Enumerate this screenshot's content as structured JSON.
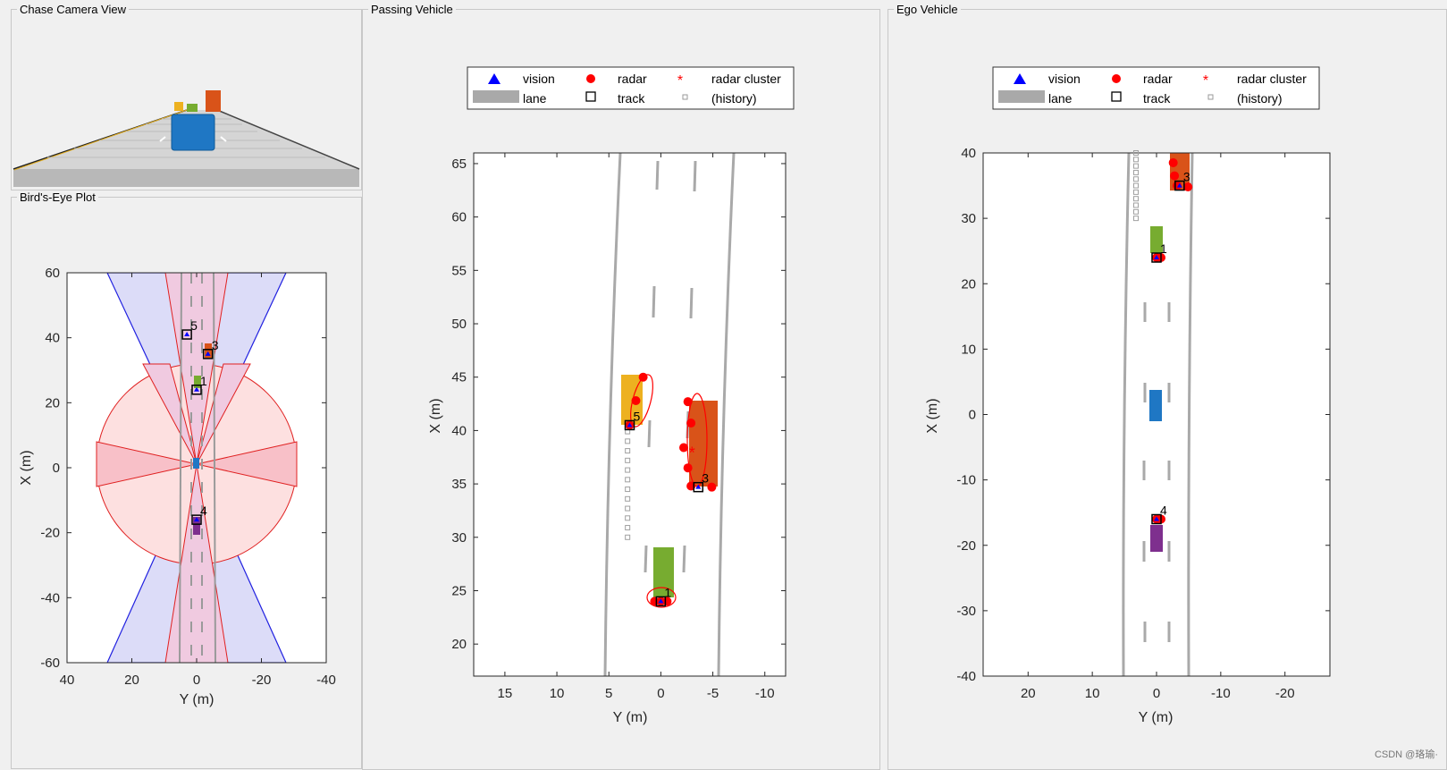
{
  "panels": {
    "chase": "Chase Camera View",
    "birdseye": "Bird's-Eye Plot",
    "passing": "Passing Vehicle",
    "ego": "Ego Vehicle"
  },
  "legend": {
    "vision": "vision",
    "radar": "radar",
    "radar_cluster": "radar cluster",
    "lane": "lane",
    "track": "track",
    "history": "(history)"
  },
  "colors": {
    "vision": "#0000ff",
    "radar": "#ff0000",
    "lane": "#a9a9a9",
    "ego_car": "#1f77c4",
    "yellow_car": "#edb120",
    "green_car": "#77ac30",
    "orange_car": "#d95319",
    "purple_car": "#7e2f8e"
  },
  "watermark": "CSDN @珞瑜·",
  "chart_data": [
    {
      "name": "birdseye",
      "type": "scatter",
      "xlabel": "Y (m)",
      "ylabel": "X (m)",
      "xlim": [
        40,
        -40
      ],
      "ylim": [
        -60,
        60
      ],
      "xticks": [
        "40",
        "20",
        "0",
        "-20",
        "-40"
      ],
      "yticks": [
        "60",
        "40",
        "20",
        "0",
        "-20",
        "-40",
        "-60"
      ],
      "tracks": [
        {
          "id": "1",
          "y": 0,
          "x": 24
        },
        {
          "id": "3",
          "y": -3.5,
          "x": 35
        },
        {
          "id": "4",
          "y": 0,
          "x": -16
        },
        {
          "id": "5",
          "y": 3,
          "x": 41
        }
      ]
    },
    {
      "name": "passing",
      "type": "scatter",
      "xlabel": "Y (m)",
      "ylabel": "X (m)",
      "xlim": [
        18,
        -12
      ],
      "ylim": [
        17,
        66
      ],
      "xticks": [
        "15",
        "10",
        "5",
        "0",
        "-5",
        "-10"
      ],
      "yticks": [
        "65",
        "60",
        "55",
        "50",
        "45",
        "40",
        "35",
        "30",
        "25",
        "20"
      ],
      "tracks": [
        {
          "id": "1",
          "y": 0,
          "x": 24
        },
        {
          "id": "3",
          "y": -3.6,
          "x": 34.7
        },
        {
          "id": "5",
          "y": 3,
          "x": 40.5
        }
      ],
      "radar": [
        {
          "y": 0,
          "x": 24
        },
        {
          "y": -0.6,
          "x": 24
        },
        {
          "y": 0.6,
          "x": 24
        },
        {
          "y": 3,
          "x": 40.5
        },
        {
          "y": 2.4,
          "x": 42.8
        },
        {
          "y": 1.7,
          "x": 45
        },
        {
          "y": -2.6,
          "x": 42.7
        },
        {
          "y": -2.9,
          "x": 40.7
        },
        {
          "y": -2.2,
          "x": 38.4
        },
        {
          "y": -2.6,
          "x": 36.5
        },
        {
          "y": -2.9,
          "x": 34.8
        },
        {
          "y": -4.9,
          "x": 34.7
        }
      ],
      "radar_cluster": [
        {
          "y": -3,
          "x": 38
        }
      ],
      "history": {
        "y": 3.2,
        "x_from": 30,
        "x_to": 40,
        "step": 0.9
      }
    },
    {
      "name": "ego",
      "type": "scatter",
      "xlabel": "Y (m)",
      "ylabel": "X (m)",
      "xlim": [
        27,
        -27
      ],
      "ylim": [
        -40,
        40
      ],
      "xticks": [
        "20",
        "10",
        "0",
        "-10",
        "-20"
      ],
      "yticks": [
        "40",
        "30",
        "20",
        "10",
        "0",
        "-10",
        "-20",
        "-30",
        "-40"
      ],
      "tracks": [
        {
          "id": "1",
          "y": 0,
          "x": 24
        },
        {
          "id": "3",
          "y": -3.6,
          "x": 35
        },
        {
          "id": "4",
          "y": 0,
          "x": -16
        }
      ],
      "radar": [
        {
          "y": 0,
          "x": 24
        },
        {
          "y": -0.7,
          "x": 24
        },
        {
          "y": 0,
          "x": -16
        },
        {
          "y": -0.7,
          "x": -16
        },
        {
          "y": -2.6,
          "x": 38.5
        },
        {
          "y": -2.8,
          "x": 36.5
        },
        {
          "y": -3.2,
          "x": 35
        },
        {
          "y": -4.9,
          "x": 34.8
        }
      ],
      "history": {
        "y": 3.2,
        "x_from": 30,
        "x_to": 40,
        "step": 1
      }
    }
  ]
}
